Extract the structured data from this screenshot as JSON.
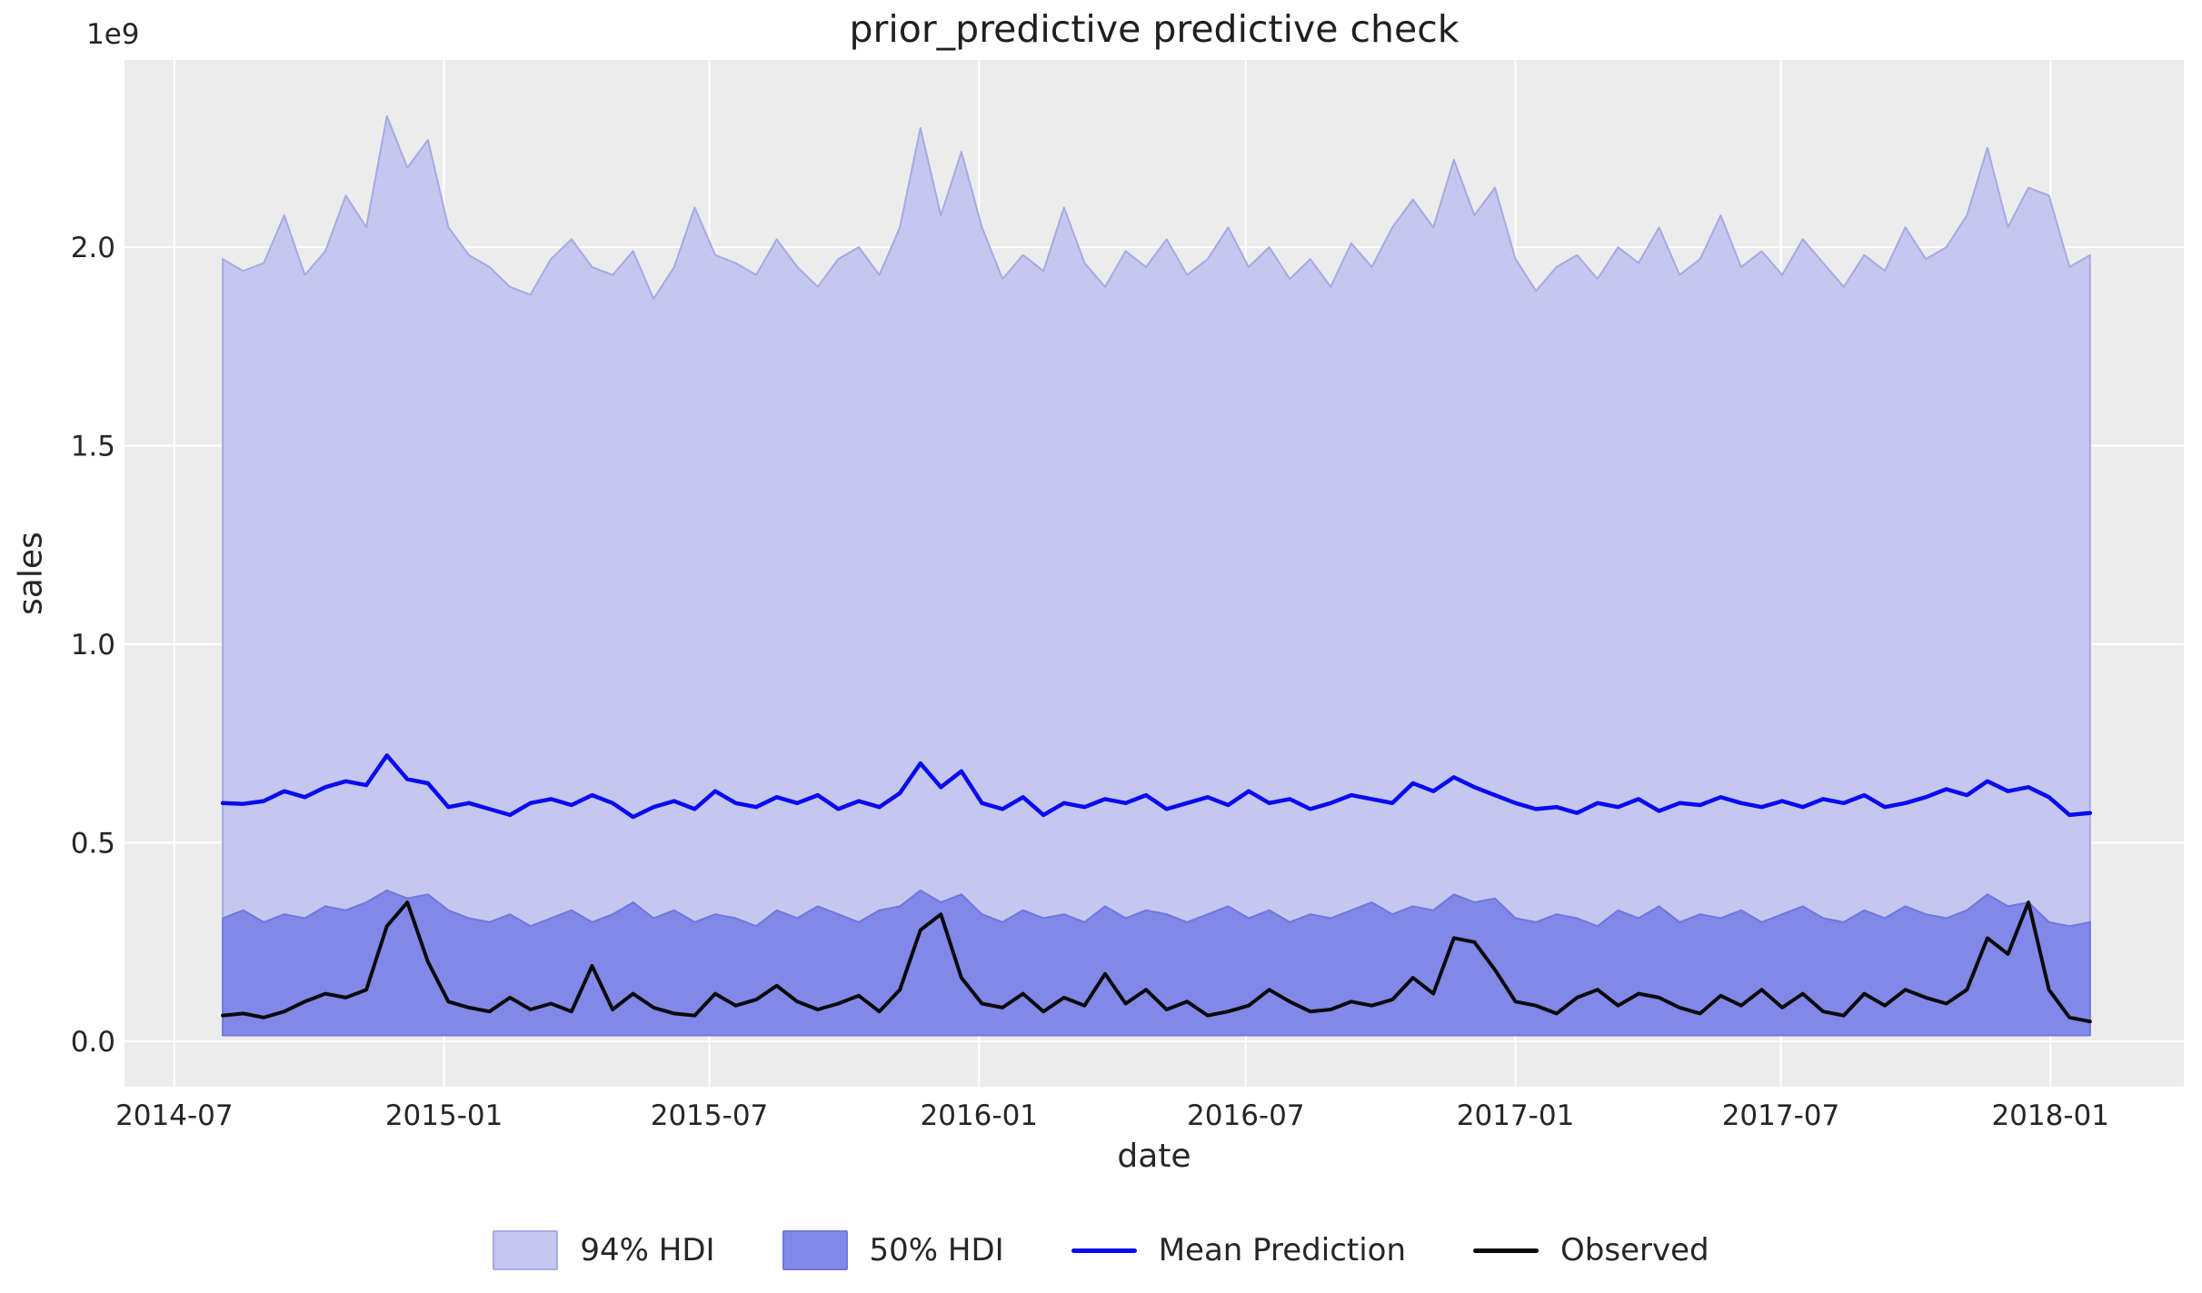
{
  "figure": {
    "title": "prior_predictive predictive check",
    "background_color": "#ffffff"
  },
  "axes": {
    "xlabel": "date",
    "ylabel": "sales",
    "offset_text": "1e9",
    "plot_bg_color": "#ececec",
    "grid_color": "#ffffff",
    "tick_color": "#262626",
    "x_domain": [
      "2014-05-28",
      "2018-04-02"
    ],
    "y_domain": [
      -0.1144,
      2.4714
    ],
    "x_ticks": [
      {
        "label": "2014-07",
        "date": "2014-07-01"
      },
      {
        "label": "2015-01",
        "date": "2015-01-01"
      },
      {
        "label": "2015-07",
        "date": "2015-07-01"
      },
      {
        "label": "2016-01",
        "date": "2016-01-01"
      },
      {
        "label": "2016-07",
        "date": "2016-07-01"
      },
      {
        "label": "2017-01",
        "date": "2017-01-01"
      },
      {
        "label": "2017-07",
        "date": "2017-07-01"
      },
      {
        "label": "2018-01",
        "date": "2018-01-01"
      }
    ],
    "y_ticks": [
      {
        "label": "0.0",
        "value": 0.0
      },
      {
        "label": "0.5",
        "value": 0.5
      },
      {
        "label": "1.0",
        "value": 1.0
      },
      {
        "label": "1.5",
        "value": 1.5
      },
      {
        "label": "2.0",
        "value": 2.0
      }
    ]
  },
  "legend": {
    "items": [
      {
        "label": "94% HDI",
        "type": "patch",
        "color": "#c5c7ee",
        "edge": "#a5aae6"
      },
      {
        "label": "50% HDI",
        "type": "patch",
        "color": "#8288e8",
        "edge": "#6f77e0"
      },
      {
        "label": "Mean Prediction",
        "type": "line",
        "color": "#0a0af2"
      },
      {
        "label": "Observed",
        "type": "line",
        "color": "#0a0a0a"
      }
    ]
  },
  "chart_data": {
    "type": "area",
    "title": "prior_predictive predictive check",
    "xlabel": "date",
    "ylabel": "sales",
    "value_unit": 1000000000.0,
    "x_start": "2014-08-03",
    "x_step_days": 14,
    "n_points": 92,
    "bands": [
      {
        "name": "94% HDI",
        "fill": "#c5c7ee",
        "edge": "#a5aae6",
        "lower": 0.015,
        "upper": [
          1.97,
          1.94,
          1.96,
          2.08,
          1.93,
          1.99,
          2.13,
          2.05,
          2.33,
          2.2,
          2.27,
          2.05,
          1.98,
          1.95,
          1.9,
          1.88,
          1.97,
          2.02,
          1.95,
          1.93,
          1.99,
          1.87,
          1.95,
          2.1,
          1.98,
          1.96,
          1.93,
          2.02,
          1.95,
          1.9,
          1.97,
          2.0,
          1.93,
          2.05,
          2.3,
          2.08,
          2.24,
          2.05,
          1.92,
          1.98,
          1.94,
          2.1,
          1.96,
          1.9,
          1.99,
          1.95,
          2.02,
          1.93,
          1.97,
          2.05,
          1.95,
          2.0,
          1.92,
          1.97,
          1.9,
          2.01,
          1.95,
          2.05,
          2.12,
          2.05,
          2.22,
          2.08,
          2.15,
          1.97,
          1.89,
          1.95,
          1.98,
          1.92,
          2.0,
          1.96,
          2.05,
          1.93,
          1.97,
          2.08,
          1.95,
          1.99,
          1.93,
          2.02,
          1.96,
          1.9,
          1.98,
          1.94,
          2.05,
          1.97,
          2.0,
          2.08,
          2.25,
          2.05,
          2.15,
          2.13,
          1.95,
          1.98
        ]
      },
      {
        "name": "50% HDI",
        "fill": "#8288e8",
        "edge": "#6f77e0",
        "lower": 0.015,
        "upper": [
          0.31,
          0.33,
          0.3,
          0.32,
          0.31,
          0.34,
          0.33,
          0.35,
          0.38,
          0.36,
          0.37,
          0.33,
          0.31,
          0.3,
          0.32,
          0.29,
          0.31,
          0.33,
          0.3,
          0.32,
          0.35,
          0.31,
          0.33,
          0.3,
          0.32,
          0.31,
          0.29,
          0.33,
          0.31,
          0.34,
          0.32,
          0.3,
          0.33,
          0.34,
          0.38,
          0.35,
          0.37,
          0.32,
          0.3,
          0.33,
          0.31,
          0.32,
          0.3,
          0.34,
          0.31,
          0.33,
          0.32,
          0.3,
          0.32,
          0.34,
          0.31,
          0.33,
          0.3,
          0.32,
          0.31,
          0.33,
          0.35,
          0.32,
          0.34,
          0.33,
          0.37,
          0.35,
          0.36,
          0.31,
          0.3,
          0.32,
          0.31,
          0.29,
          0.33,
          0.31,
          0.34,
          0.3,
          0.32,
          0.31,
          0.33,
          0.3,
          0.32,
          0.34,
          0.31,
          0.3,
          0.33,
          0.31,
          0.34,
          0.32,
          0.31,
          0.33,
          0.37,
          0.34,
          0.35,
          0.3,
          0.29,
          0.3
        ]
      }
    ],
    "lines": [
      {
        "name": "Mean Prediction",
        "color": "#0a0af2",
        "width": 4.5,
        "values": [
          0.6,
          0.598,
          0.605,
          0.63,
          0.615,
          0.64,
          0.655,
          0.645,
          0.72,
          0.66,
          0.65,
          0.59,
          0.6,
          0.585,
          0.57,
          0.6,
          0.61,
          0.595,
          0.62,
          0.6,
          0.565,
          0.59,
          0.605,
          0.585,
          0.63,
          0.6,
          0.59,
          0.615,
          0.6,
          0.62,
          0.585,
          0.605,
          0.59,
          0.625,
          0.7,
          0.64,
          0.68,
          0.6,
          0.585,
          0.615,
          0.57,
          0.6,
          0.59,
          0.61,
          0.6,
          0.62,
          0.585,
          0.6,
          0.615,
          0.595,
          0.63,
          0.6,
          0.61,
          0.585,
          0.6,
          0.62,
          0.61,
          0.6,
          0.65,
          0.63,
          0.665,
          0.64,
          0.62,
          0.6,
          0.585,
          0.59,
          0.575,
          0.6,
          0.59,
          0.61,
          0.58,
          0.6,
          0.595,
          0.615,
          0.6,
          0.59,
          0.605,
          0.59,
          0.61,
          0.6,
          0.62,
          0.59,
          0.6,
          0.615,
          0.635,
          0.62,
          0.655,
          0.63,
          0.64,
          0.615,
          0.57,
          0.575
        ]
      },
      {
        "name": "Observed",
        "color": "#0a0a0a",
        "width": 4,
        "values": [
          0.065,
          0.07,
          0.06,
          0.075,
          0.1,
          0.12,
          0.11,
          0.13,
          0.29,
          0.35,
          0.2,
          0.1,
          0.085,
          0.075,
          0.11,
          0.08,
          0.095,
          0.075,
          0.19,
          0.08,
          0.12,
          0.085,
          0.07,
          0.065,
          0.12,
          0.09,
          0.105,
          0.14,
          0.1,
          0.08,
          0.095,
          0.115,
          0.075,
          0.13,
          0.28,
          0.32,
          0.16,
          0.095,
          0.085,
          0.12,
          0.075,
          0.11,
          0.09,
          0.17,
          0.095,
          0.13,
          0.08,
          0.1,
          0.065,
          0.075,
          0.09,
          0.13,
          0.1,
          0.075,
          0.08,
          0.1,
          0.09,
          0.105,
          0.16,
          0.12,
          0.26,
          0.25,
          0.18,
          0.1,
          0.09,
          0.07,
          0.11,
          0.13,
          0.09,
          0.12,
          0.11,
          0.085,
          0.07,
          0.115,
          0.09,
          0.13,
          0.085,
          0.12,
          0.075,
          0.065,
          0.12,
          0.09,
          0.13,
          0.11,
          0.095,
          0.13,
          0.26,
          0.22,
          0.35,
          0.13,
          0.06,
          0.05
        ]
      }
    ]
  }
}
